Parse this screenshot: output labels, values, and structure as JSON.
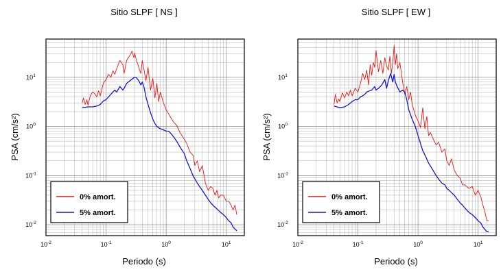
{
  "colors": {
    "series_0": "#e8140f",
    "series_5": "#1414d2"
  },
  "chart_data": [
    {
      "type": "line",
      "title": "Sitio SLPF [ NS ]",
      "xlabel": "Periodo (s)",
      "ylabel": "PSA (cm/s²)",
      "xscale": "log",
      "yscale": "log",
      "xlim": [
        0.01,
        20
      ],
      "ylim": [
        0.006,
        60
      ],
      "grid": true,
      "legend_position": "bottom-left",
      "x_ticks": [
        {
          "base": "10",
          "exp": "-2",
          "value": 0.01
        },
        {
          "base": "10",
          "exp": "-1",
          "value": 0.1
        },
        {
          "base": "10",
          "exp": "0",
          "value": 1
        },
        {
          "base": "10",
          "exp": "1",
          "value": 10
        }
      ],
      "y_ticks": [
        {
          "base": "10",
          "exp": "-2",
          "value": 0.01
        },
        {
          "base": "10",
          "exp": "-1",
          "value": 0.1
        },
        {
          "base": "10",
          "exp": "0",
          "value": 1
        },
        {
          "base": "10",
          "exp": "1",
          "value": 10
        }
      ],
      "series": [
        {
          "name": "0% amort.",
          "x": [
            0.04,
            0.042,
            0.045,
            0.048,
            0.05,
            0.055,
            0.06,
            0.065,
            0.07,
            0.075,
            0.08,
            0.09,
            0.1,
            0.11,
            0.12,
            0.13,
            0.14,
            0.15,
            0.17,
            0.19,
            0.2,
            0.22,
            0.25,
            0.27,
            0.29,
            0.3,
            0.32,
            0.34,
            0.36,
            0.38,
            0.4,
            0.43,
            0.46,
            0.5,
            0.55,
            0.6,
            0.65,
            0.7,
            0.75,
            0.8,
            0.9,
            1.0,
            1.1,
            1.2,
            1.35,
            1.5,
            1.7,
            2.0,
            2.2,
            2.5,
            2.8,
            3.0,
            3.3,
            3.6,
            4.0,
            4.5,
            5.0,
            5.5,
            6.0,
            6.5,
            7.0,
            7.5,
            8.0,
            9.0,
            10.0,
            11.0,
            12.0,
            13.0,
            14.0,
            15.0
          ],
          "y": [
            3.0,
            3.8,
            2.8,
            3.5,
            2.7,
            4.3,
            5.0,
            4.6,
            4.0,
            5.3,
            4.2,
            7.5,
            9.0,
            11.5,
            10.0,
            13.5,
            11.5,
            15.0,
            22.0,
            18.0,
            12.0,
            22.0,
            28.0,
            34.0,
            25.0,
            31.0,
            22.0,
            18.0,
            14.0,
            12.0,
            22.0,
            14.0,
            8.5,
            16.0,
            5.5,
            9.5,
            3.8,
            7.5,
            3.2,
            5.0,
            3.0,
            2.2,
            1.8,
            1.5,
            1.2,
            1.05,
            0.75,
            0.55,
            0.45,
            0.3,
            0.26,
            0.16,
            0.2,
            0.12,
            0.16,
            0.07,
            0.05,
            0.06,
            0.055,
            0.04,
            0.05,
            0.035,
            0.04,
            0.04,
            0.03,
            0.03,
            0.025,
            0.02,
            0.025,
            0.016
          ]
        },
        {
          "name": "5% amort.",
          "x": [
            0.04,
            0.05,
            0.06,
            0.07,
            0.08,
            0.09,
            0.1,
            0.11,
            0.12,
            0.13,
            0.14,
            0.15,
            0.17,
            0.19,
            0.2,
            0.22,
            0.25,
            0.28,
            0.3,
            0.32,
            0.35,
            0.38,
            0.4,
            0.43,
            0.46,
            0.5,
            0.55,
            0.6,
            0.65,
            0.7,
            0.8,
            0.9,
            1.0,
            1.1,
            1.2,
            1.35,
            1.5,
            1.7,
            2.0,
            2.2,
            2.5,
            2.8,
            3.2,
            3.6,
            4.0,
            4.5,
            5.0,
            5.5,
            6.0,
            7.0,
            8.0,
            9.0,
            10.0,
            11.0,
            12.0,
            13.0,
            14.0,
            15.0
          ],
          "y": [
            2.4,
            2.5,
            2.5,
            2.6,
            2.8,
            3.3,
            3.5,
            4.0,
            4.5,
            5.0,
            5.5,
            5.0,
            6.5,
            5.5,
            6.0,
            7.5,
            8.5,
            9.5,
            10.0,
            9.8,
            8.5,
            7.0,
            8.0,
            6.2,
            4.0,
            2.8,
            1.9,
            1.4,
            1.15,
            1.0,
            0.9,
            0.85,
            0.8,
            0.8,
            0.72,
            0.6,
            0.5,
            0.38,
            0.28,
            0.2,
            0.14,
            0.1,
            0.075,
            0.06,
            0.05,
            0.04,
            0.033,
            0.028,
            0.025,
            0.021,
            0.018,
            0.016,
            0.014,
            0.012,
            0.011,
            0.009,
            0.0082,
            0.0075
          ]
        }
      ]
    },
    {
      "type": "line",
      "title": "Sitio SLPF [ EW ]",
      "xlabel": "Periodo (s)",
      "ylabel": "PSA (cm/s²)",
      "xscale": "log",
      "yscale": "log",
      "xlim": [
        0.01,
        20
      ],
      "ylim": [
        0.006,
        60
      ],
      "grid": true,
      "legend_position": "bottom-left",
      "x_ticks": [
        {
          "base": "10",
          "exp": "-2",
          "value": 0.01
        },
        {
          "base": "10",
          "exp": "-1",
          "value": 0.1
        },
        {
          "base": "10",
          "exp": "0",
          "value": 1
        },
        {
          "base": "10",
          "exp": "1",
          "value": 10
        }
      ],
      "y_ticks": [
        {
          "base": "10",
          "exp": "-2",
          "value": 0.01
        },
        {
          "base": "10",
          "exp": "-1",
          "value": 0.1
        },
        {
          "base": "10",
          "exp": "0",
          "value": 1
        },
        {
          "base": "10",
          "exp": "1",
          "value": 10
        }
      ],
      "series": [
        {
          "name": "0% amort.",
          "x": [
            0.04,
            0.042,
            0.045,
            0.048,
            0.05,
            0.055,
            0.06,
            0.065,
            0.07,
            0.075,
            0.08,
            0.09,
            0.1,
            0.11,
            0.12,
            0.13,
            0.14,
            0.15,
            0.16,
            0.17,
            0.18,
            0.19,
            0.2,
            0.22,
            0.24,
            0.26,
            0.28,
            0.3,
            0.32,
            0.34,
            0.36,
            0.38,
            0.4,
            0.42,
            0.44,
            0.46,
            0.5,
            0.55,
            0.6,
            0.65,
            0.7,
            0.75,
            0.8,
            0.9,
            1.0,
            1.1,
            1.2,
            1.3,
            1.4,
            1.5,
            1.6,
            1.8,
            2.0,
            2.2,
            2.5,
            2.8,
            3.0,
            3.3,
            3.6,
            4.0,
            4.5,
            5.0,
            5.5,
            6.0,
            7.0,
            8.0,
            9.0,
            10.0,
            11.0,
            12.0,
            13.0,
            14.0,
            15.0
          ],
          "y": [
            2.8,
            4.5,
            3.0,
            3.6,
            3.2,
            4.8,
            3.8,
            5.0,
            4.2,
            5.5,
            4.2,
            6.0,
            5.0,
            7.5,
            12.0,
            9.0,
            14.0,
            7.0,
            18.0,
            11.0,
            20.0,
            16.0,
            35.0,
            13.0,
            22.0,
            12.0,
            25.0,
            17.0,
            14.0,
            27.0,
            12.0,
            20.0,
            45.0,
            18.0,
            30.0,
            15.0,
            20.0,
            8.5,
            4.5,
            6.5,
            3.5,
            5.0,
            2.8,
            1.7,
            1.3,
            0.95,
            2.4,
            0.9,
            1.6,
            0.65,
            0.75,
            0.55,
            0.42,
            0.48,
            0.3,
            0.35,
            0.2,
            0.16,
            0.22,
            0.13,
            0.1,
            0.09,
            0.065,
            0.065,
            0.055,
            0.06,
            0.04,
            0.05,
            0.038,
            0.025,
            0.018,
            0.012,
            0.012
          ]
        },
        {
          "name": "5% amort.",
          "x": [
            0.04,
            0.05,
            0.06,
            0.07,
            0.08,
            0.09,
            0.1,
            0.11,
            0.12,
            0.13,
            0.14,
            0.15,
            0.17,
            0.19,
            0.2,
            0.22,
            0.25,
            0.28,
            0.3,
            0.32,
            0.35,
            0.38,
            0.4,
            0.42,
            0.45,
            0.5,
            0.55,
            0.6,
            0.65,
            0.7,
            0.8,
            0.9,
            1.0,
            1.1,
            1.2,
            1.35,
            1.5,
            1.7,
            2.0,
            2.2,
            2.5,
            2.8,
            3.0,
            3.3,
            3.6,
            4.0,
            4.5,
            5.0,
            5.5,
            6.0,
            7.0,
            8.0,
            9.0,
            10.0,
            11.0,
            12.0,
            13.0,
            14.0,
            15.0
          ],
          "y": [
            2.6,
            2.4,
            2.5,
            2.8,
            3.2,
            3.5,
            3.5,
            4.0,
            4.2,
            4.5,
            5.0,
            5.2,
            5.5,
            6.5,
            5.5,
            6.0,
            7.0,
            9.0,
            6.0,
            8.5,
            12.0,
            8.0,
            11.5,
            8.0,
            6.5,
            5.0,
            5.5,
            5.0,
            3.5,
            2.2,
            1.4,
            1.0,
            0.65,
            0.45,
            0.32,
            0.24,
            0.18,
            0.14,
            0.1,
            0.085,
            0.07,
            0.065,
            0.055,
            0.05,
            0.045,
            0.04,
            0.033,
            0.028,
            0.025,
            0.022,
            0.018,
            0.016,
            0.014,
            0.012,
            0.011,
            0.009,
            0.008,
            0.0072,
            0.0072
          ]
        }
      ]
    }
  ]
}
